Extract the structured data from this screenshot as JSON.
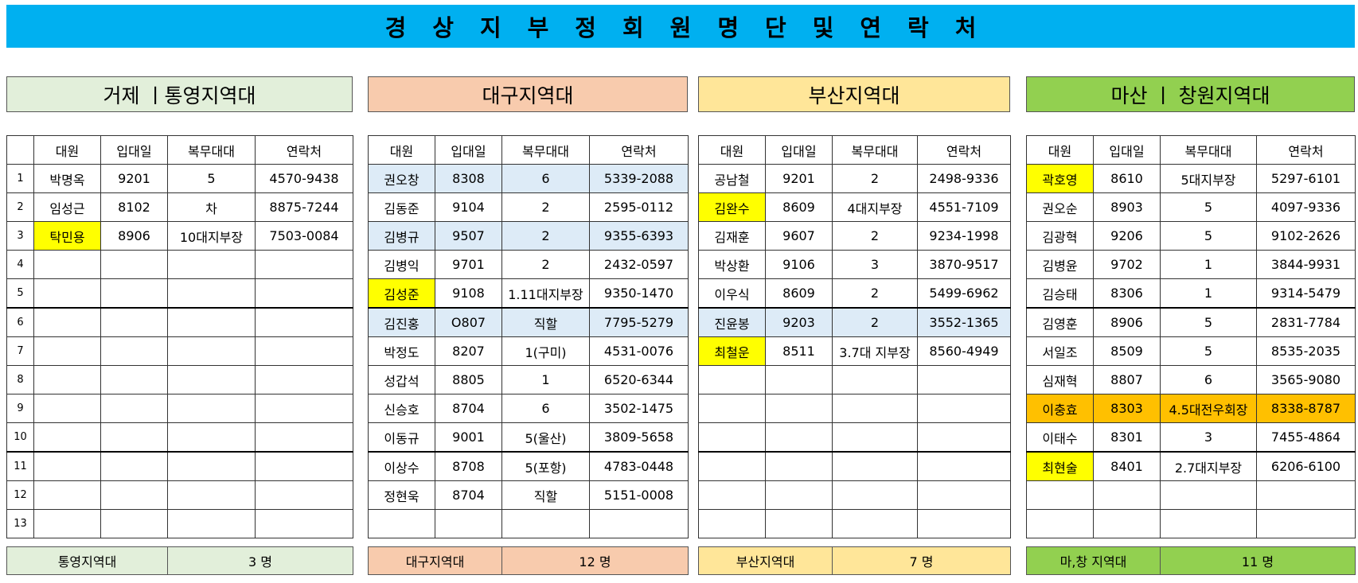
{
  "title": "경상지부정회원명단및연락처",
  "columns": [
    "대원",
    "입대일",
    "복무대대",
    "연락처"
  ],
  "colors": {
    "banner": "#00b0f0",
    "green": "#e2efda",
    "salmon": "#f8cbad",
    "yellow": "#ffe699",
    "lime": "#92d050",
    "highlight": "#ffff00",
    "blue": "#ddebf7",
    "orange": "#ffc000"
  },
  "regions": [
    {
      "header": "거제 ㅣ통영지역대",
      "rows": [
        {
          "num": "1",
          "name": "박명옥",
          "date": "9201",
          "unit": "5",
          "phone": "4570-9438"
        },
        {
          "num": "2",
          "name": "임성근",
          "date": "8102",
          "unit": "차",
          "phone": "8875-7244"
        },
        {
          "num": "3",
          "name": "탁민용",
          "date": "8906",
          "unit": "10대지부장",
          "phone": "7503-0084"
        },
        {
          "num": "4",
          "name": "",
          "date": "",
          "unit": "",
          "phone": ""
        },
        {
          "num": "5",
          "name": "",
          "date": "",
          "unit": "",
          "phone": ""
        },
        {
          "num": "6",
          "name": "",
          "date": "",
          "unit": "",
          "phone": ""
        },
        {
          "num": "7",
          "name": "",
          "date": "",
          "unit": "",
          "phone": ""
        },
        {
          "num": "8",
          "name": "",
          "date": "",
          "unit": "",
          "phone": ""
        },
        {
          "num": "9",
          "name": "",
          "date": "",
          "unit": "",
          "phone": ""
        },
        {
          "num": "10",
          "name": "",
          "date": "",
          "unit": "",
          "phone": ""
        },
        {
          "num": "11",
          "name": "",
          "date": "",
          "unit": "",
          "phone": ""
        },
        {
          "num": "12",
          "name": "",
          "date": "",
          "unit": "",
          "phone": ""
        },
        {
          "num": "13",
          "name": "",
          "date": "",
          "unit": "",
          "phone": ""
        }
      ],
      "footer_label": "통영지역대",
      "footer_count": "3 명"
    },
    {
      "header": "대구지역대",
      "rows": [
        {
          "name": "권오창",
          "date": "8308",
          "unit": "6",
          "phone": "5339-2088"
        },
        {
          "name": "김동준",
          "date": "9104",
          "unit": "2",
          "phone": "2595-0112"
        },
        {
          "name": "김병규",
          "date": "9507",
          "unit": "2",
          "phone": "9355-6393"
        },
        {
          "name": "김병익",
          "date": "9701",
          "unit": "2",
          "phone": "2432-0597"
        },
        {
          "name": "김성준",
          "date": "9108",
          "unit": "1.11대지부장",
          "phone": "9350-1470"
        },
        {
          "name": "김진홍",
          "date": "O807",
          "unit": "직할",
          "phone": "7795-5279"
        },
        {
          "name": "박정도",
          "date": "8207",
          "unit": "1(구미)",
          "phone": "4531-0076"
        },
        {
          "name": "성갑석",
          "date": "8805",
          "unit": "1",
          "phone": "6520-6344"
        },
        {
          "name": "신승호",
          "date": "8704",
          "unit": "6",
          "phone": "3502-1475"
        },
        {
          "name": "이동규",
          "date": "9001",
          "unit": "5(울산)",
          "phone": "3809-5658"
        },
        {
          "name": "이상수",
          "date": "8708",
          "unit": "5(포항)",
          "phone": "4783-0448"
        },
        {
          "name": "정현욱",
          "date": "8704",
          "unit": "직할",
          "phone": "5151-0008"
        },
        {
          "name": "",
          "date": "",
          "unit": "",
          "phone": ""
        }
      ],
      "footer_label": "대구지역대",
      "footer_count": "12 명"
    },
    {
      "header": "부산지역대",
      "rows": [
        {
          "name": "공남철",
          "date": "9201",
          "unit": "2",
          "phone": "2498-9336"
        },
        {
          "name": "김완수",
          "date": "8609",
          "unit": "4대지부장",
          "phone": "4551-7109"
        },
        {
          "name": "김재훈",
          "date": "9607",
          "unit": "2",
          "phone": "9234-1998"
        },
        {
          "name": "박상환",
          "date": "9106",
          "unit": "3",
          "phone": "3870-9517"
        },
        {
          "name": "이우식",
          "date": "8609",
          "unit": "2",
          "phone": "5499-6962"
        },
        {
          "name": "진윤봉",
          "date": "9203",
          "unit": "2",
          "phone": "3552-1365"
        },
        {
          "name": "최철운",
          "date": "8511",
          "unit": "3.7대 지부장",
          "phone": "8560-4949"
        },
        {
          "name": "",
          "date": "",
          "unit": "",
          "phone": ""
        },
        {
          "name": "",
          "date": "",
          "unit": "",
          "phone": ""
        },
        {
          "name": "",
          "date": "",
          "unit": "",
          "phone": ""
        },
        {
          "name": "",
          "date": "",
          "unit": "",
          "phone": ""
        },
        {
          "name": "",
          "date": "",
          "unit": "",
          "phone": ""
        },
        {
          "name": "",
          "date": "",
          "unit": "",
          "phone": ""
        }
      ],
      "footer_label": "부산지역대",
      "footer_count": "7 명"
    },
    {
      "header": "마산 ㅣ 창원지역대",
      "rows": [
        {
          "name": "곽호영",
          "date": "8610",
          "unit": "5대지부장",
          "phone": "5297-6101"
        },
        {
          "name": "권오순",
          "date": "8903",
          "unit": "5",
          "phone": "4097-9336"
        },
        {
          "name": "김광혁",
          "date": "9206",
          "unit": "5",
          "phone": "9102-2626"
        },
        {
          "name": "김병윤",
          "date": "9702",
          "unit": "1",
          "phone": "3844-9931"
        },
        {
          "name": "김승태",
          "date": "8306",
          "unit": "1",
          "phone": "9314-5479"
        },
        {
          "name": "김영훈",
          "date": "8906",
          "unit": "5",
          "phone": "2831-7784"
        },
        {
          "name": "서일조",
          "date": "8509",
          "unit": "5",
          "phone": "8535-2035"
        },
        {
          "name": "심재혁",
          "date": "8807",
          "unit": "6",
          "phone": "3565-9080"
        },
        {
          "name": "이충효",
          "date": "8303",
          "unit": "4.5대전우회장",
          "phone": "8338-8787"
        },
        {
          "name": "이태수",
          "date": "8301",
          "unit": "3",
          "phone": "7455-4864"
        },
        {
          "name": "최현술",
          "date": "8401",
          "unit": "2.7대지부장",
          "phone": "6206-6100"
        },
        {
          "name": "",
          "date": "",
          "unit": "",
          "phone": ""
        },
        {
          "name": "",
          "date": "",
          "unit": "",
          "phone": ""
        }
      ],
      "footer_label": "마,창 지역대",
      "footer_count": "11 명"
    }
  ]
}
